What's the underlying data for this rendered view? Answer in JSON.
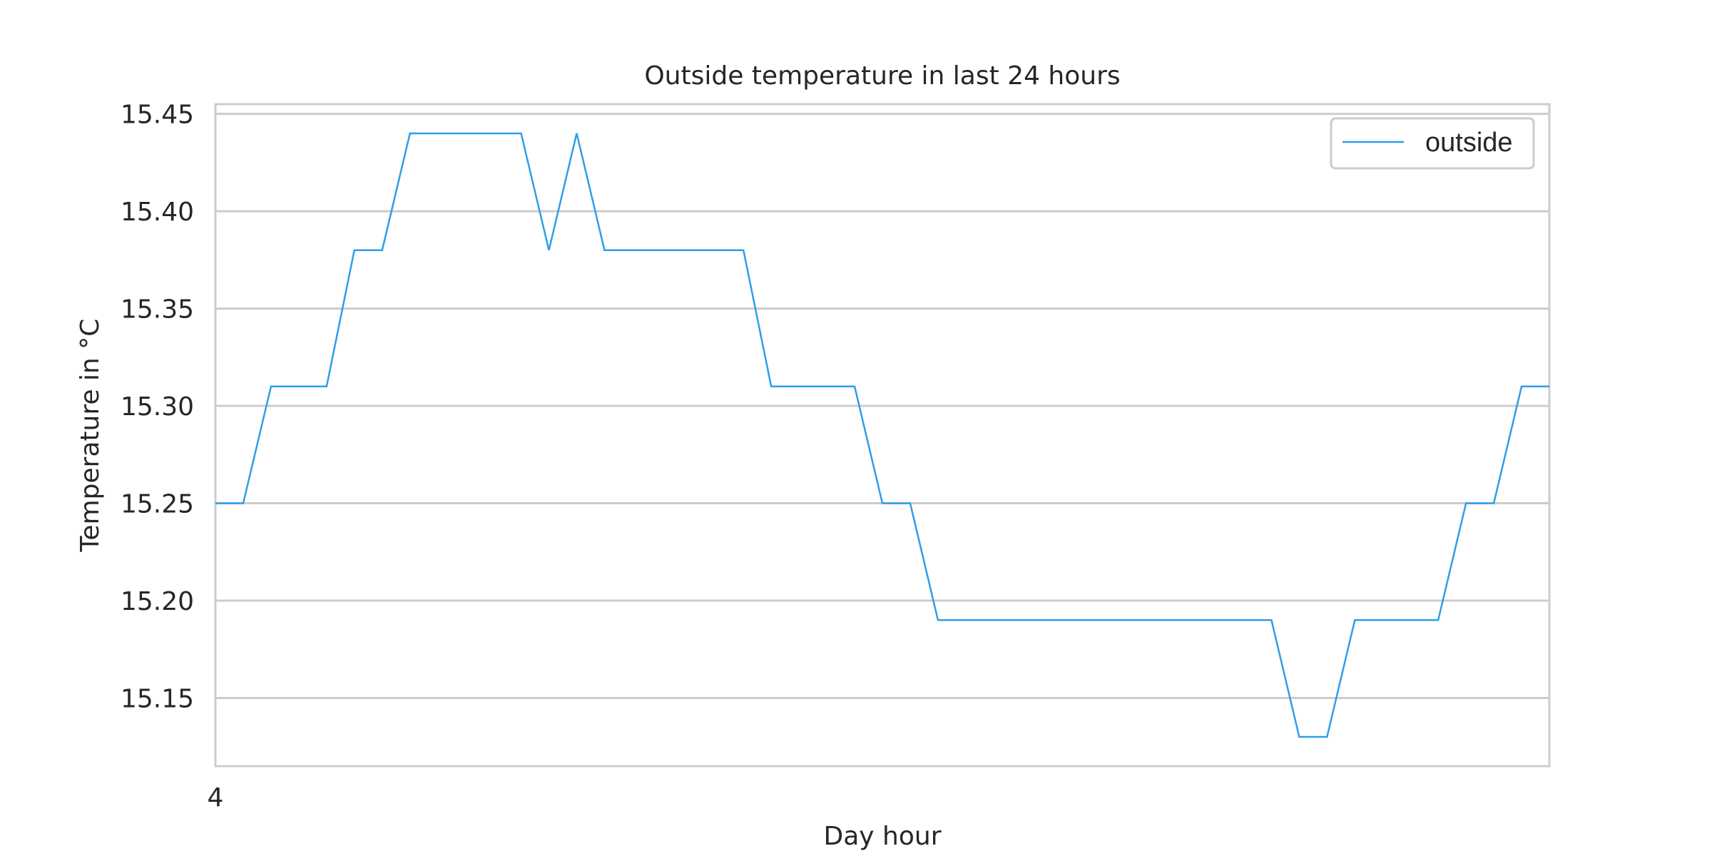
{
  "chart_data": {
    "type": "line",
    "title": "Outside temperature in last 24 hours",
    "xlabel": "Day hour",
    "ylabel": "Temperature in °C",
    "x_ticks": [
      "4"
    ],
    "y_ticks": [
      15.15,
      15.2,
      15.25,
      15.3,
      15.35,
      15.4,
      15.45
    ],
    "y_tick_labels": [
      "15.15",
      "15.20",
      "15.25",
      "15.30",
      "15.35",
      "15.40",
      "15.45"
    ],
    "ylim": [
      15.115,
      15.455
    ],
    "grid": true,
    "legend": {
      "entries": [
        "outside"
      ],
      "placement": "top-right"
    },
    "series": [
      {
        "name": "outside",
        "color": "#2e9ee8",
        "values": [
          15.25,
          15.25,
          15.31,
          15.31,
          15.31,
          15.38,
          15.38,
          15.44,
          15.44,
          15.44,
          15.44,
          15.44,
          15.38,
          15.44,
          15.38,
          15.38,
          15.38,
          15.38,
          15.38,
          15.38,
          15.31,
          15.31,
          15.31,
          15.31,
          15.25,
          15.25,
          15.19,
          15.19,
          15.19,
          15.19,
          15.19,
          15.19,
          15.19,
          15.19,
          15.19,
          15.19,
          15.19,
          15.19,
          15.19,
          15.13,
          15.13,
          15.19,
          15.19,
          15.19,
          15.19,
          15.25,
          15.25,
          15.31,
          15.31
        ]
      }
    ]
  }
}
